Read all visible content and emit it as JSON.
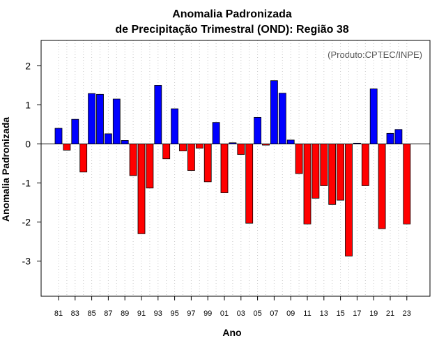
{
  "chart_data": {
    "type": "bar",
    "title": "Anomalia Padronizada",
    "subtitle": "de Precipitação Trimestral (OND): Região 38",
    "xlabel": "Ano",
    "ylabel": "Anomalia Padronizada",
    "annotation": "(Produto:CPTEC/INPE)",
    "ylim": [
      -3.9,
      2.65
    ],
    "yticks": [
      "-3",
      "-2",
      "-1",
      "0",
      "1",
      "2"
    ],
    "grid": "vertical dotted",
    "years": [
      1981,
      1982,
      1983,
      1984,
      1985,
      1986,
      1987,
      1988,
      1989,
      1990,
      1991,
      1992,
      1993,
      1994,
      1995,
      1996,
      1997,
      1998,
      1999,
      2000,
      2001,
      2002,
      2003,
      2004,
      2005,
      2006,
      2007,
      2008,
      2009,
      2010,
      2011,
      2012,
      2013,
      2014,
      2015,
      2016,
      2017,
      2018,
      2019,
      2020,
      2021,
      2022,
      2023
    ],
    "tick_labels": [
      "81",
      "83",
      "85",
      "87",
      "89",
      "91",
      "93",
      "95",
      "97",
      "99",
      "01",
      "03",
      "05",
      "07",
      "09",
      "11",
      "13",
      "15",
      "17",
      "19",
      "21",
      "23"
    ],
    "values": [
      0.4,
      -0.16,
      0.63,
      -0.72,
      1.29,
      1.27,
      0.26,
      1.15,
      0.09,
      -0.81,
      -2.3,
      -1.13,
      1.5,
      -0.38,
      0.9,
      -0.18,
      -0.68,
      -0.11,
      -0.97,
      0.55,
      -1.25,
      0.03,
      -0.27,
      -2.03,
      0.68,
      -0.03,
      1.62,
      1.3,
      0.1,
      -0.76,
      -2.05,
      -1.39,
      -1.07,
      -1.55,
      -1.44,
      -2.87,
      0.02,
      -1.07,
      1.41,
      -2.17,
      0.27,
      0.37,
      -2.05
    ],
    "colors": {
      "positive": "#0000ff",
      "negative": "#ff0000",
      "outline": "#000000",
      "grid": "#c8c8c8",
      "annotation": "#555555"
    }
  }
}
